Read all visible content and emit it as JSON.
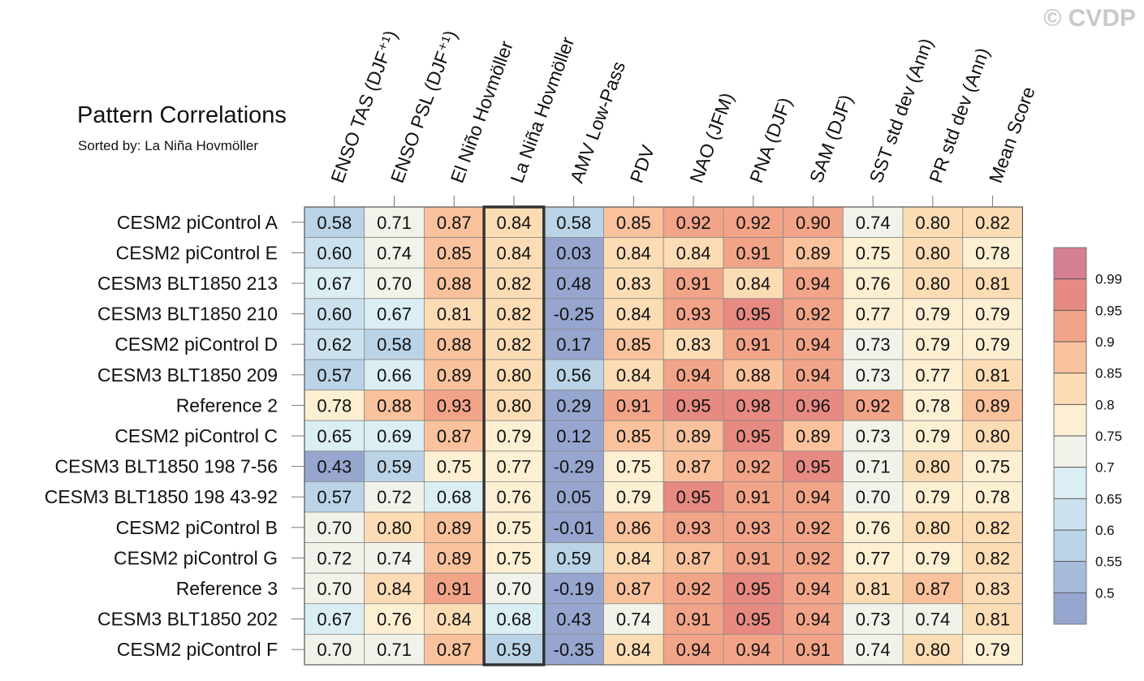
{
  "watermark": "© CVDP",
  "chart_data": {
    "type": "heatmap",
    "title": "Pattern Correlations",
    "subtitle": "Sorted by: La Niña Hovmöller",
    "columns": [
      "ENSO TAS (DJF⁺¹)",
      "ENSO PSL (DJF⁺¹)",
      "El Niño Hovmöller",
      "La Niña Hovmöller",
      "AMV Low-Pass",
      "PDV",
      "NAO (JFM)",
      "PNA (DJF)",
      "SAM (DJF)",
      "SST std dev (Ann)",
      "PR std dev (Ann)",
      "Mean Score"
    ],
    "highlight_column": "La Niña Hovmöller",
    "rows": [
      "CESM2 piControl A",
      "CESM2 piControl E",
      "CESM3 BLT1850 213",
      "CESM3 BLT1850 210",
      "CESM2 piControl D",
      "CESM3 BLT1850 209",
      "Reference 2",
      "CESM2 piControl C",
      "CESM3 BLT1850 198 7-56",
      "CESM3 BLT1850 198 43-92",
      "CESM2 piControl B",
      "CESM2 piControl G",
      "Reference 3",
      "CESM3 BLT1850 202",
      "CESM2 piControl F"
    ],
    "values": [
      [
        "0.58",
        "0.71",
        "0.87",
        "0.84",
        "0.58",
        "0.85",
        "0.92",
        "0.92",
        "0.90",
        "0.74",
        "0.80",
        "0.82"
      ],
      [
        "0.60",
        "0.74",
        "0.85",
        "0.84",
        "0.03",
        "0.84",
        "0.84",
        "0.91",
        "0.89",
        "0.75",
        "0.80",
        "0.78"
      ],
      [
        "0.67",
        "0.70",
        "0.88",
        "0.82",
        "0.48",
        "0.83",
        "0.91",
        "0.84",
        "0.94",
        "0.76",
        "0.80",
        "0.81"
      ],
      [
        "0.60",
        "0.67",
        "0.81",
        "0.82",
        "-0.25",
        "0.84",
        "0.93",
        "0.95",
        "0.92",
        "0.77",
        "0.79",
        "0.79"
      ],
      [
        "0.62",
        "0.58",
        "0.88",
        "0.82",
        "0.17",
        "0.85",
        "0.83",
        "0.91",
        "0.94",
        "0.73",
        "0.79",
        "0.79"
      ],
      [
        "0.57",
        "0.66",
        "0.89",
        "0.80",
        "0.56",
        "0.84",
        "0.94",
        "0.88",
        "0.94",
        "0.73",
        "0.77",
        "0.81"
      ],
      [
        "0.78",
        "0.88",
        "0.93",
        "0.80",
        "0.29",
        "0.91",
        "0.95",
        "0.98",
        "0.96",
        "0.92",
        "0.78",
        "0.89"
      ],
      [
        "0.65",
        "0.69",
        "0.87",
        "0.79",
        "0.12",
        "0.85",
        "0.89",
        "0.95",
        "0.89",
        "0.73",
        "0.79",
        "0.80"
      ],
      [
        "0.43",
        "0.59",
        "0.75",
        "0.77",
        "-0.29",
        "0.75",
        "0.87",
        "0.92",
        "0.95",
        "0.71",
        "0.80",
        "0.75"
      ],
      [
        "0.57",
        "0.72",
        "0.68",
        "0.76",
        "0.05",
        "0.79",
        "0.95",
        "0.91",
        "0.94",
        "0.70",
        "0.79",
        "0.78"
      ],
      [
        "0.70",
        "0.80",
        "0.89",
        "0.75",
        "-0.01",
        "0.86",
        "0.93",
        "0.93",
        "0.92",
        "0.76",
        "0.80",
        "0.82"
      ],
      [
        "0.72",
        "0.74",
        "0.89",
        "0.75",
        "0.59",
        "0.84",
        "0.87",
        "0.91",
        "0.92",
        "0.77",
        "0.79",
        "0.82"
      ],
      [
        "0.70",
        "0.84",
        "0.91",
        "0.70",
        "-0.19",
        "0.87",
        "0.92",
        "0.95",
        "0.94",
        "0.81",
        "0.87",
        "0.83"
      ],
      [
        "0.67",
        "0.76",
        "0.84",
        "0.68",
        "0.43",
        "0.74",
        "0.91",
        "0.95",
        "0.94",
        "0.73",
        "0.74",
        "0.81"
      ],
      [
        "0.70",
        "0.71",
        "0.87",
        "0.59",
        "-0.35",
        "0.84",
        "0.94",
        "0.94",
        "0.91",
        "0.74",
        "0.80",
        "0.79"
      ]
    ],
    "colorbar": {
      "tick_labels": [
        "0.99",
        "0.95",
        "0.9",
        "0.85",
        "0.8",
        "0.75",
        "0.7",
        "0.65",
        "0.6",
        "0.55",
        "0.5"
      ],
      "thresholds": [
        0.5,
        0.55,
        0.6,
        0.65,
        0.7,
        0.75,
        0.8,
        0.85,
        0.9,
        0.95,
        0.99
      ],
      "colors": [
        "#97a6cf",
        "#a7bcdb",
        "#bad3e6",
        "#cbe2ee",
        "#dbeef4",
        "#f1f3ea",
        "#fcefd2",
        "#fcdcb4",
        "#f9c29c",
        "#f2a488",
        "#e68a82",
        "#d57f92"
      ]
    }
  }
}
